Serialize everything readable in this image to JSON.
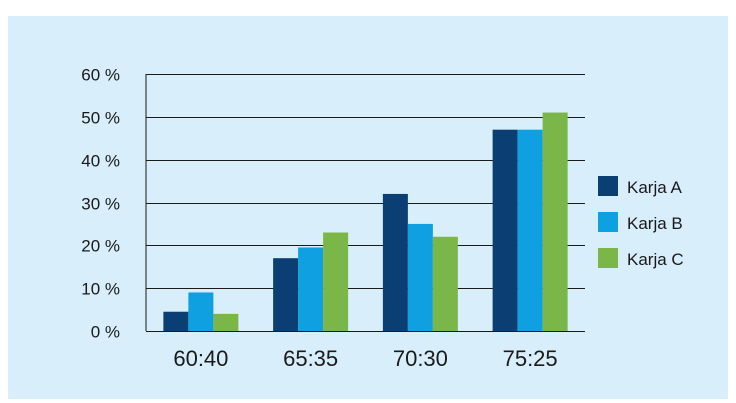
{
  "chart_data": {
    "type": "bar",
    "categories": [
      "60:40",
      "65:35",
      "70:30",
      "75:25"
    ],
    "series": [
      {
        "name": "Karja A",
        "color": "#0b3f73",
        "values": [
          4.5,
          17,
          32,
          47
        ]
      },
      {
        "name": "Karja B",
        "color": "#0ea0e0",
        "values": [
          9,
          19.5,
          25,
          47
        ]
      },
      {
        "name": "Karja C",
        "color": "#7ab648",
        "values": [
          4,
          23,
          22,
          51
        ]
      }
    ],
    "y_ticks": [
      0,
      10,
      20,
      30,
      40,
      50,
      60
    ],
    "y_tick_labels": [
      "0 %",
      "10 %",
      "20 %",
      "30 %",
      "40 %",
      "50 %",
      "60 %"
    ],
    "ylim": [
      0,
      60
    ],
    "grid": true,
    "legend_position": "right",
    "title": "",
    "xlabel": "",
    "ylabel": ""
  },
  "colors": {
    "background": "#d8eefb",
    "gridline": "#1a1a1a",
    "text": "#1a1a1a"
  }
}
